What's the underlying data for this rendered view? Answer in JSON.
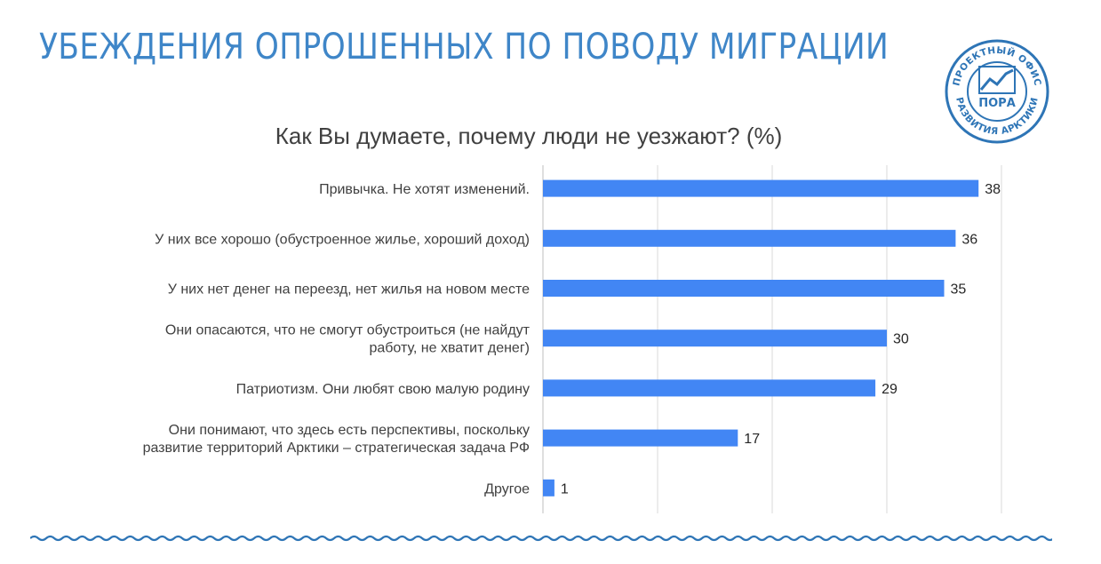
{
  "header": {
    "title": "УБЕЖДЕНИЯ ОПРОШЕННЫХ ПО ПОВОДУ МИГРАЦИИ",
    "logo": {
      "text_top": "ПРОЕКТНЫЙ ОФИС",
      "text_center": "ПОРА",
      "text_bottom": "РАЗВИТИЯ АРКТИКИ"
    }
  },
  "colors": {
    "title": "#3f86c8",
    "bar": "#4286f4",
    "grid": "#d9d9d9",
    "text": "#404040",
    "logo": "#2e75b6"
  },
  "chart_data": {
    "type": "bar",
    "orientation": "horizontal",
    "title": "Как Вы думаете, почему люди не уезжают? (%)",
    "xlabel": "",
    "ylabel": "",
    "xlim": [
      0,
      40
    ],
    "grid": true,
    "categories": [
      [
        "Привычка. Не хотят изменений."
      ],
      [
        "У них все хорошо (обустроенное жилье, хороший доход)"
      ],
      [
        "У них нет денег на переезд, нет жилья на новом месте"
      ],
      [
        "Они опасаются, что не смогут обустроиться (не найдут",
        "работу, не хватит денег)"
      ],
      [
        "Патриотизм. Они любят свою малую родину"
      ],
      [
        "Они понимают, что здесь есть перспективы, поскольку",
        "развитие территорий Арктики – стратегическая задача РФ"
      ],
      [
        "Другое"
      ]
    ],
    "values": [
      38,
      36,
      35,
      30,
      29,
      17,
      1
    ]
  }
}
